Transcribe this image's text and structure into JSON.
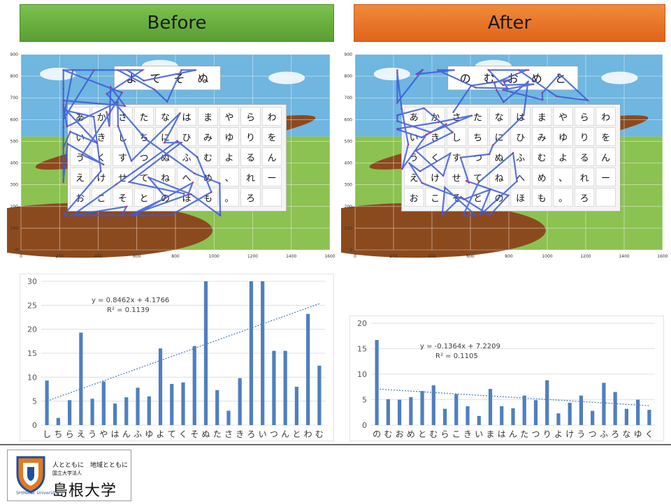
{
  "banners": {
    "before": "Before",
    "after": "After"
  },
  "boards": {
    "before": {
      "top_row": [
        "よ",
        "て",
        "そ",
        "ぬ"
      ],
      "grid": [
        [
          "あ",
          "か",
          "さ",
          "た",
          "な",
          "は",
          "ま",
          "や",
          "ら",
          "わ"
        ],
        [
          "い",
          "き",
          "し",
          "ち",
          "に",
          "ひ",
          "み",
          "ゆ",
          "り",
          "を"
        ],
        [
          "う",
          "く",
          "す",
          "つ",
          "ぬ",
          "ふ",
          "む",
          "よ",
          "る",
          "ん"
        ],
        [
          "え",
          "け",
          "せ",
          "て",
          "ね",
          "へ",
          "め",
          "、",
          "れ",
          "ー"
        ],
        [
          "お",
          "こ",
          "そ",
          "と",
          "の",
          "ほ",
          "も",
          "。",
          "ろ",
          ""
        ]
      ]
    },
    "after": {
      "top_row": [
        "の",
        "む",
        "お",
        "め",
        "と"
      ],
      "grid": [
        [
          "あ",
          "か",
          "さ",
          "た",
          "な",
          "は",
          "ま",
          "や",
          "ら",
          "わ"
        ],
        [
          "い",
          "き",
          "し",
          "ち",
          "に",
          "ひ",
          "み",
          "ゆ",
          "り",
          "を"
        ],
        [
          "う",
          "く",
          "す",
          "つ",
          "ぬ",
          "ふ",
          "む",
          "よ",
          "る",
          "ん"
        ],
        [
          "え",
          "け",
          "せ",
          "て",
          "ね",
          "へ",
          "め",
          "、",
          "れ",
          "ー"
        ],
        [
          "お",
          "こ",
          "そ",
          "と",
          "の",
          "ほ",
          "も",
          "。",
          "ろ",
          ""
        ]
      ]
    },
    "x_ticks": [
      0,
      200,
      400,
      600,
      800,
      1000,
      1200,
      1400,
      1600
    ],
    "y_ticks": [
      0,
      100,
      200,
      300,
      400,
      500,
      600,
      700,
      800,
      900
    ],
    "xlim": [
      0,
      1600
    ],
    "ylim": [
      0,
      900
    ]
  },
  "chart_data": [
    {
      "type": "bar",
      "categories": [
        "し",
        "ち",
        "ら",
        "え",
        "う",
        "や",
        "は",
        "ん",
        "ふ",
        "ゆ",
        "よ",
        "て",
        "く",
        "そ",
        "ぬ",
        "た",
        "さ",
        "き",
        "ろ",
        "い",
        "つ",
        "ん",
        "と",
        "わ",
        "む"
      ],
      "values": [
        9.3,
        1.5,
        5.2,
        19.3,
        5.5,
        9.1,
        4.5,
        5.8,
        7.8,
        6.0,
        16.0,
        8.6,
        8.9,
        16.5,
        30,
        7.3,
        3.0,
        9.8,
        30,
        30,
        15.5,
        15.5,
        8.0,
        23.2,
        12.4
      ],
      "ylim": [
        0,
        30
      ],
      "y_ticks": [
        0,
        5,
        10,
        15,
        20,
        25,
        30
      ],
      "trendline": {
        "slope": 0.8462,
        "intercept": 4.1766,
        "equation": "y = 0.8462x + 4.1766",
        "r2": "R² = 0.1139"
      },
      "bar_color": "#4f7fbf",
      "grid": true
    },
    {
      "type": "bar",
      "categories": [
        "の",
        "む",
        "お",
        "め",
        "と",
        "む",
        "ら",
        "こ",
        "き",
        "い",
        "ま",
        "は",
        "ん",
        "た",
        "つ",
        "り",
        "よ",
        "け",
        "う",
        "つ",
        "ふ",
        "ろ",
        "な",
        "ゆ",
        "く"
      ],
      "values": [
        16.7,
        5.1,
        5.0,
        5.5,
        6.7,
        7.8,
        3.2,
        6.1,
        3.7,
        1.8,
        7.1,
        3.7,
        3.3,
        5.8,
        4.9,
        8.8,
        2.3,
        4.4,
        5.8,
        2.8,
        8.3,
        6.5,
        3.2,
        5.0,
        3.0
      ],
      "ylim": [
        0,
        20
      ],
      "y_ticks": [
        0,
        5,
        10,
        15,
        20
      ],
      "trendline": {
        "slope": -0.1364,
        "intercept": 7.2209,
        "equation": "y = -0.1364x + 7.2209",
        "r2": "R² = 0.1105"
      },
      "bar_color": "#4f7fbf",
      "grid": true
    }
  ],
  "footer": {
    "slogan": "人とともに　地域とともに",
    "org_type": "国立大学法人",
    "university": "島根大学",
    "university_en": "SHIMANE University"
  }
}
